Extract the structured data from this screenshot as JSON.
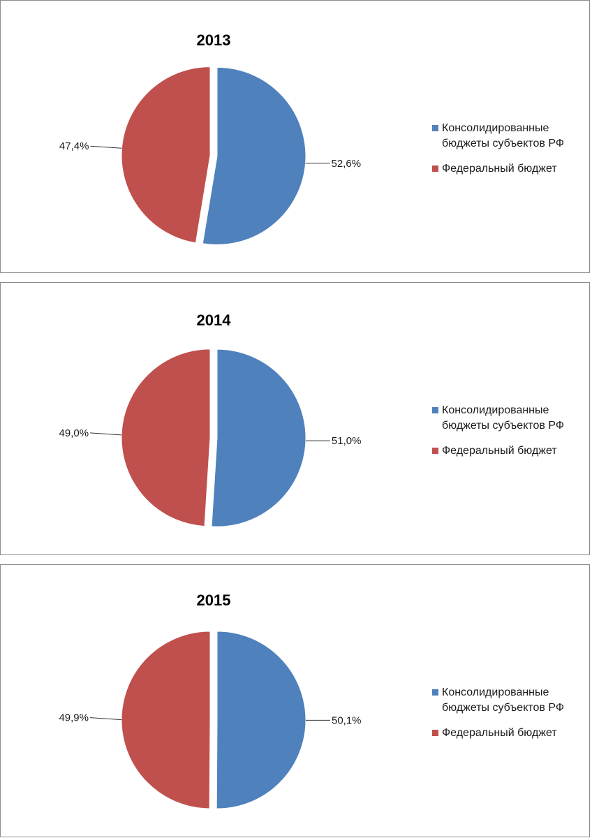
{
  "chart_data": [
    {
      "type": "pie",
      "title": "2013",
      "labels": [
        "Консолидированные бюджеты субъектов РФ",
        "Федеральный бюджет"
      ],
      "values": [
        52.6,
        47.4
      ],
      "data_labels": [
        "52,6%",
        "47,4%"
      ],
      "legend": "right"
    },
    {
      "type": "pie",
      "title": "2014",
      "labels": [
        "Консолидированные бюджеты субъектов РФ",
        "Федеральный бюджет"
      ],
      "values": [
        51.0,
        49.0
      ],
      "data_labels": [
        "51,0%",
        "49,0%"
      ],
      "legend": "right"
    },
    {
      "type": "pie",
      "title": "2015",
      "labels": [
        "Консолидированные бюджеты субъектов РФ",
        "Федеральный бюджет"
      ],
      "values": [
        50.1,
        49.9
      ],
      "data_labels": [
        "50,1%",
        "49,9%"
      ],
      "legend": "right"
    }
  ],
  "legend": {
    "line1": "Консолидированные",
    "line2": "бюджеты субъектов РФ",
    "federal": "Федеральный бюджет"
  },
  "colors": {
    "regional": "#4F81BD",
    "federal": "#C0504D"
  }
}
